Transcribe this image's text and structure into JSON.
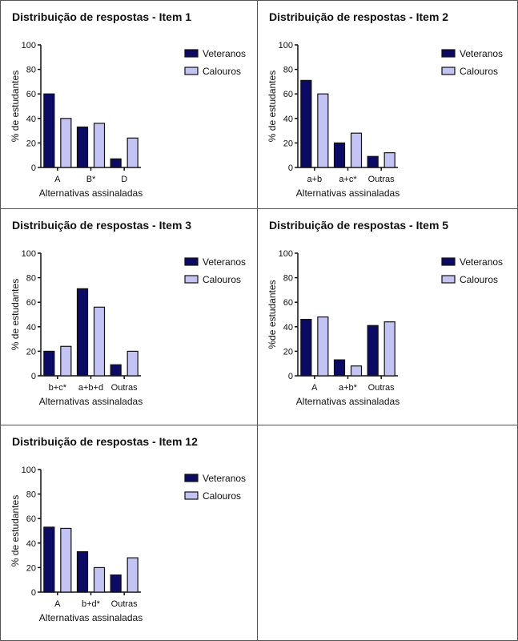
{
  "colors": {
    "veteranos": "#0b0b66",
    "calouros": "#c4c4f4",
    "outline": "#111111"
  },
  "chart_data": [
    {
      "type": "bar",
      "title": "Distribuição de respostas - Item 1",
      "xlabel": "Alternativas assinaladas",
      "ylabel": "% de estudantes",
      "ylim": [
        0,
        100
      ],
      "yticks": [
        "0",
        "20",
        "40",
        "60",
        "80",
        "100"
      ],
      "legend": "right",
      "categories": [
        "A",
        "B*",
        "D"
      ],
      "series": [
        {
          "name": "Veteranos",
          "values": [
            60,
            33,
            7
          ]
        },
        {
          "name": "Calouros",
          "values": [
            40,
            36,
            24
          ]
        }
      ]
    },
    {
      "type": "bar",
      "title": "Distribuição de respostas - Item 2",
      "xlabel": "Alternativas assinaladas",
      "ylabel": "% de estudantes",
      "ylim": [
        0,
        100
      ],
      "yticks": [
        "0",
        "20",
        "40",
        "60",
        "80",
        "100"
      ],
      "legend": "right",
      "categories": [
        "a+b",
        "a+c*",
        "Outras"
      ],
      "series": [
        {
          "name": "Veteranos",
          "values": [
            71,
            20,
            9
          ]
        },
        {
          "name": "Calouros",
          "values": [
            60,
            28,
            12
          ]
        }
      ]
    },
    {
      "type": "bar",
      "title": "Distribuição de respostas - Item 3",
      "xlabel": "Alternativas assinaladas",
      "ylabel": "% de estudantes",
      "ylim": [
        0,
        100
      ],
      "yticks": [
        "0",
        "20",
        "40",
        "60",
        "80",
        "100"
      ],
      "legend": "right",
      "categories": [
        "b+c*",
        "a+b+d",
        "Outras"
      ],
      "series": [
        {
          "name": "Veteranos",
          "values": [
            20,
            71,
            9
          ]
        },
        {
          "name": "Calouros",
          "values": [
            24,
            56,
            20
          ]
        }
      ]
    },
    {
      "type": "bar",
      "title": "Distribuição de respostas - Item 5",
      "xlabel": "Alternativas assinaladas",
      "ylabel": "%de estudantes",
      "ylim": [
        0,
        100
      ],
      "yticks": [
        "0",
        "20",
        "40",
        "60",
        "80",
        "100"
      ],
      "legend": "right",
      "categories": [
        "A",
        "a+b*",
        "Outras"
      ],
      "series": [
        {
          "name": "Veteranos",
          "values": [
            46,
            13,
            41
          ]
        },
        {
          "name": "Calouros",
          "values": [
            48,
            8,
            44
          ]
        }
      ]
    },
    {
      "type": "bar",
      "title": "Distribuição de respostas - Item 12",
      "xlabel": "Alternativas assinaladas",
      "ylabel": "% de estudantes",
      "ylim": [
        0,
        100
      ],
      "yticks": [
        "0",
        "20",
        "40",
        "60",
        "80",
        "100"
      ],
      "legend": "right",
      "categories": [
        "A",
        "b+d*",
        "Outras"
      ],
      "series": [
        {
          "name": "Veteranos",
          "values": [
            53,
            33,
            14
          ]
        },
        {
          "name": "Calouros",
          "values": [
            52,
            20,
            28
          ]
        }
      ]
    }
  ]
}
